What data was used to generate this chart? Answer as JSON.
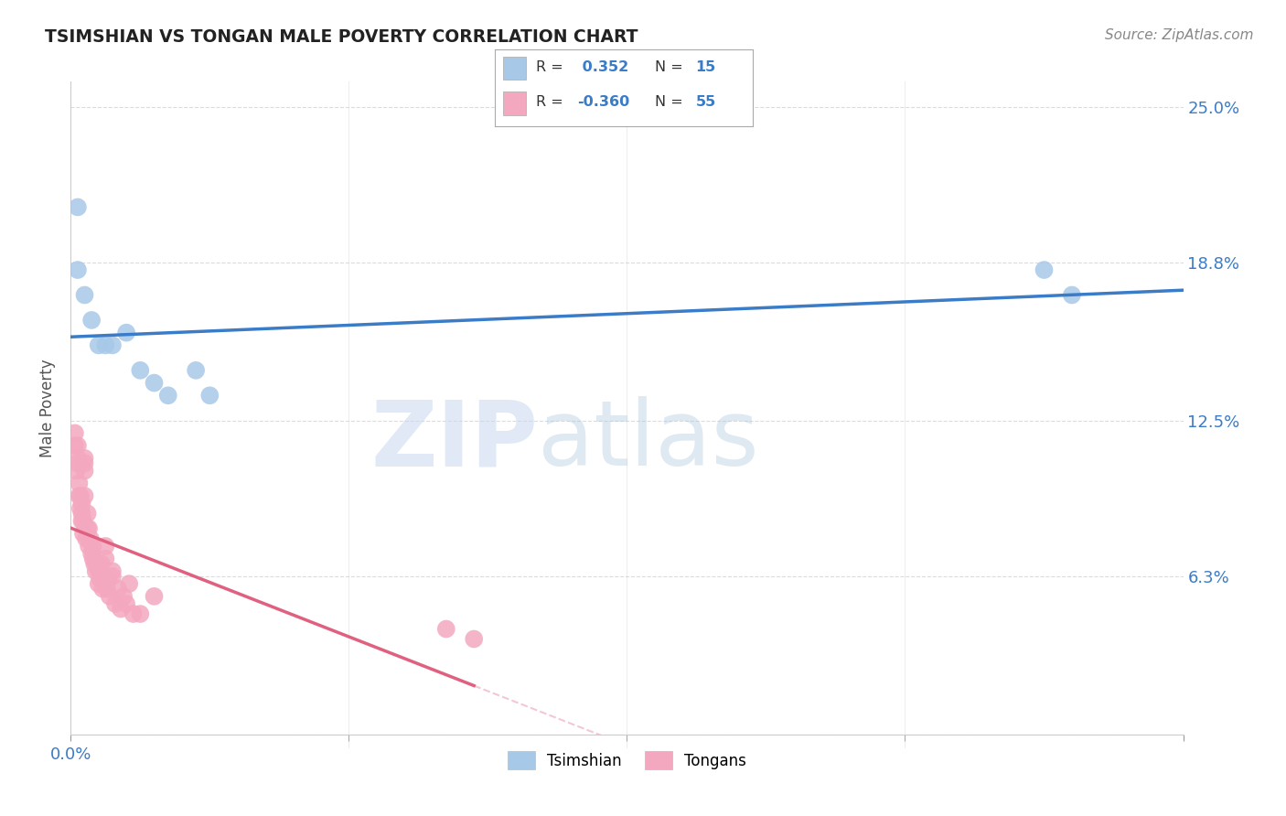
{
  "title": "TSIMSHIAN VS TONGAN MALE POVERTY CORRELATION CHART",
  "source": "Source: ZipAtlas.com",
  "ylabel": "Male Poverty",
  "y_ticks": [
    0.0,
    0.063,
    0.125,
    0.188,
    0.25
  ],
  "y_tick_labels": [
    "",
    "6.3%",
    "12.5%",
    "18.8%",
    "25.0%"
  ],
  "xlim": [
    0.0,
    0.8
  ],
  "ylim": [
    0.0,
    0.26
  ],
  "tsimshian_color": "#a8c8e8",
  "tongan_color": "#f4a8c0",
  "tsimshian_line_color": "#3a7cc8",
  "tongan_line_color": "#e06080",
  "background_color": "#ffffff",
  "watermark_zip": "ZIP",
  "watermark_atlas": "atlas",
  "grid_color": "#cccccc",
  "tsimshian_x": [
    0.005,
    0.005,
    0.01,
    0.015,
    0.02,
    0.03,
    0.04,
    0.05,
    0.06,
    0.07,
    0.09,
    0.1,
    0.7,
    0.72,
    0.025
  ],
  "tsimshian_y": [
    0.185,
    0.21,
    0.175,
    0.165,
    0.155,
    0.155,
    0.16,
    0.145,
    0.14,
    0.135,
    0.145,
    0.135,
    0.185,
    0.175,
    0.155
  ],
  "tongan_x": [
    0.003,
    0.003,
    0.004,
    0.005,
    0.005,
    0.005,
    0.006,
    0.006,
    0.007,
    0.007,
    0.008,
    0.008,
    0.008,
    0.009,
    0.009,
    0.01,
    0.01,
    0.01,
    0.01,
    0.011,
    0.012,
    0.012,
    0.013,
    0.013,
    0.014,
    0.015,
    0.016,
    0.016,
    0.017,
    0.018,
    0.019,
    0.02,
    0.02,
    0.021,
    0.022,
    0.023,
    0.024,
    0.025,
    0.025,
    0.026,
    0.027,
    0.028,
    0.03,
    0.03,
    0.032,
    0.034,
    0.036,
    0.038,
    0.04,
    0.042,
    0.045,
    0.05,
    0.06,
    0.27,
    0.29
  ],
  "tongan_y": [
    0.115,
    0.12,
    0.105,
    0.11,
    0.115,
    0.108,
    0.095,
    0.1,
    0.09,
    0.095,
    0.085,
    0.088,
    0.092,
    0.08,
    0.085,
    0.105,
    0.108,
    0.11,
    0.095,
    0.078,
    0.082,
    0.088,
    0.075,
    0.082,
    0.078,
    0.072,
    0.07,
    0.075,
    0.068,
    0.065,
    0.068,
    0.06,
    0.065,
    0.062,
    0.068,
    0.058,
    0.062,
    0.07,
    0.075,
    0.058,
    0.062,
    0.055,
    0.063,
    0.065,
    0.052,
    0.058,
    0.05,
    0.055,
    0.052,
    0.06,
    0.048,
    0.048,
    0.055,
    0.042,
    0.038
  ],
  "r_label_color": "#3a7cc8",
  "n_label_color": "#3a7cc8",
  "source_color": "#888888",
  "ylabel_color": "#555555",
  "title_color": "#222222"
}
